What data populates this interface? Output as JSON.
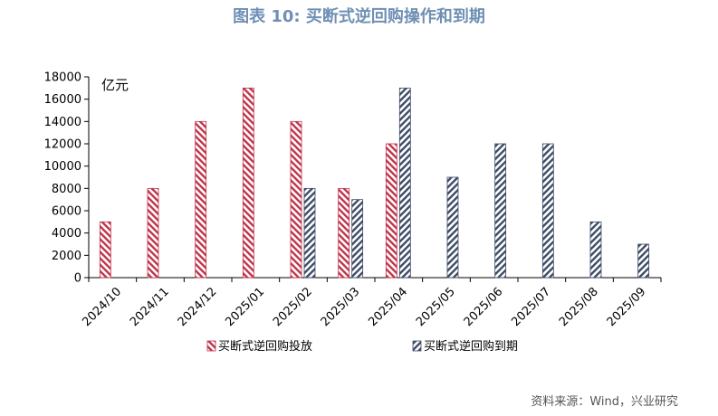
{
  "figure_title": "图表 10: 买断式逆回购操作和到期",
  "source_note": "资料来源：Wind，兴业研究",
  "chart_data": {
    "type": "bar",
    "title": "",
    "unit_label": "亿元",
    "xlabel": "",
    "ylabel": "",
    "categories": [
      "2024/10",
      "2024/11",
      "2024/12",
      "2025/01",
      "2025/02",
      "2025/03",
      "2025/04",
      "2025/05",
      "2025/06",
      "2025/07",
      "2025/08",
      "2025/09"
    ],
    "series": [
      {
        "name": "买断式逆回购投放",
        "color": "#c0334a",
        "pattern": "diagonal-red-hatch",
        "values": [
          5000,
          8000,
          14000,
          17000,
          14000,
          8000,
          12000,
          null,
          null,
          null,
          null,
          null
        ]
      },
      {
        "name": "买断式逆回购到期",
        "color": "#3d4b66",
        "pattern": "diagonal-navy-hatch",
        "values": [
          null,
          null,
          null,
          null,
          8000,
          7000,
          17000,
          9000,
          12000,
          12000,
          5000,
          3000
        ]
      }
    ],
    "ylim": [
      0,
      18000
    ],
    "yticks": [
      0,
      2000,
      4000,
      6000,
      8000,
      10000,
      12000,
      14000,
      16000,
      18000
    ],
    "grid": false,
    "legend_position": "bottom"
  }
}
